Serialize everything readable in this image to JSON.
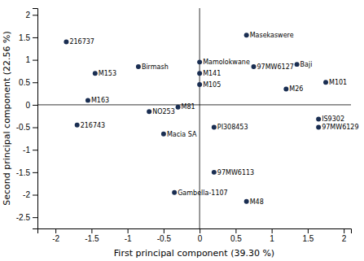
{
  "chart_data": {
    "type": "scatter",
    "xlabel": "First principal component (39.30 %)",
    "ylabel": "Second principal component (22.56 %)",
    "labels": [
      "216737",
      "M153",
      "Birmash",
      "M163",
      "NO253",
      "216743",
      "Macia SA",
      "Gambella-1107",
      "Mamolokwane",
      "M141",
      "M105",
      "M81",
      "PI308453",
      "97MW6113",
      "M48",
      "Masekaswere",
      "97MW6127",
      "Baji",
      "M26",
      "M101",
      "IS9302",
      "97MW6129"
    ],
    "x": [
      -1.85,
      -1.45,
      -0.85,
      -1.55,
      -0.7,
      -1.7,
      -0.5,
      -0.35,
      0.0,
      0.0,
      0.0,
      -0.3,
      0.2,
      0.2,
      0.65,
      0.65,
      0.75,
      1.35,
      1.2,
      1.75,
      1.65,
      1.65
    ],
    "values": [
      1.4,
      0.7,
      0.85,
      0.1,
      -0.15,
      -0.45,
      -0.65,
      -1.95,
      0.95,
      0.7,
      0.45,
      -0.05,
      -0.5,
      -1.5,
      -2.15,
      1.55,
      0.85,
      0.9,
      0.35,
      0.5,
      -0.32,
      -0.5
    ],
    "color": "#1a2e52",
    "marker": "circle",
    "xlim": [
      -2.25,
      2.1
    ],
    "ylim": [
      -2.75,
      2.15
    ],
    "xticks": [
      -2,
      -1.5,
      -1,
      -0.5,
      0,
      0.5,
      1,
      1.5,
      2
    ],
    "yticks": [
      -2.5,
      -2,
      -1.5,
      -1,
      -0.5,
      0,
      0.5,
      1,
      1.5,
      2
    ],
    "grid": false
  }
}
